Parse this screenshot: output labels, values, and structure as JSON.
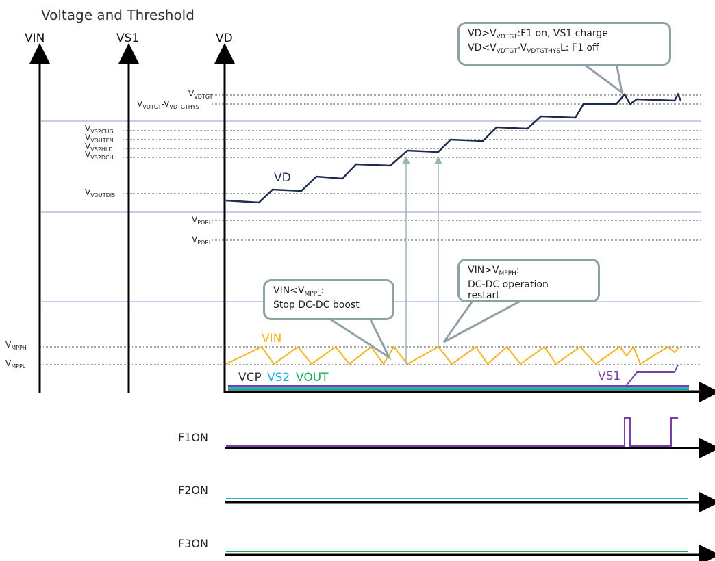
{
  "title": "Voltage and Threshold",
  "axes": {
    "vin": "VIN",
    "vs1": "VS1",
    "vd": "VD"
  },
  "thresholds": [
    {
      "base": "V",
      "sub": "VDTGT"
    },
    {
      "base": "V",
      "sub": "VDTGT",
      "mid": "-V",
      "sub2": "VDTGTHYS"
    },
    {
      "base": "V",
      "sub": "VS2CHG"
    },
    {
      "base": "V",
      "sub": "VOUTEN"
    },
    {
      "base": "V",
      "sub": "VS2HLD"
    },
    {
      "base": "V",
      "sub": "VS2DCH"
    },
    {
      "base": "V",
      "sub": "VOUTDIS"
    },
    {
      "base": "V",
      "sub": "PORH"
    },
    {
      "base": "V",
      "sub": "PORL"
    },
    {
      "base": "V",
      "sub": "MPPH"
    },
    {
      "base": "V",
      "sub": "MPPL"
    }
  ],
  "traces": {
    "vd": "VD",
    "vin": "VIN",
    "vcp": "VCP",
    "vs2": "VS2",
    "vout": "VOUT",
    "vs1": "VS1"
  },
  "callouts": {
    "top": {
      "l1a": "VD>V",
      "l1s": "VDTGT",
      "l1b": ":F1 on, VS1 charge",
      "l2a": "VD<V",
      "l2s": "VDTGT",
      "l2m": "-V",
      "l2s2": "VDTGTHYS",
      "l2b": "L:  F1 off"
    },
    "stop": {
      "l1a": "VIN<V",
      "l1s": "MPPL",
      "l1b": ":",
      "l2": "Stop DC-DC boost"
    },
    "restart": {
      "l1a": "VIN>V",
      "l1s": "MPPH",
      "l1b": ":",
      "l2": "DC-DC operation",
      "l3": "restart"
    }
  },
  "signals": {
    "f1": "F1ON",
    "f2": "F2ON",
    "f3": "F3ON"
  },
  "colors": {
    "vd": "#1f2a4f",
    "vin": "#f5b418",
    "vs1": "#7a3ea8",
    "vs2": "#22aee0",
    "vout": "#1aab5b",
    "vcp": "#333333",
    "arrow": "#9fb6b6",
    "band": "#9a9ad0",
    "threshold": "#555555"
  }
}
